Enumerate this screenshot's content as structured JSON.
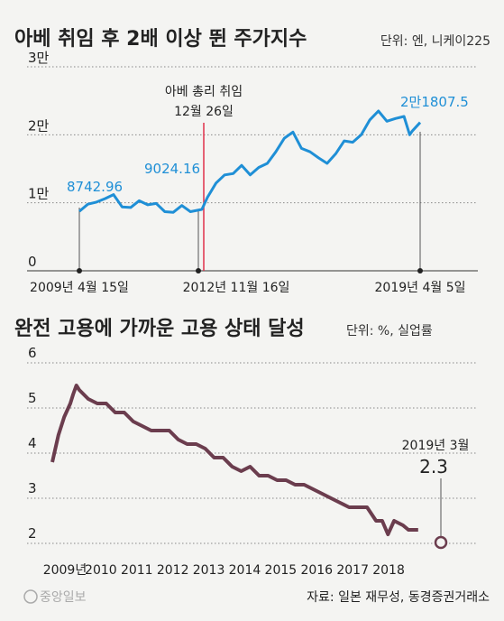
{
  "chart_data": [
    {
      "type": "line",
      "title": "아베 취임 후 2배 이상 뛴 주가지수",
      "unit_note": "단위: 엔, 니케이225",
      "y_ticks": [
        "3만",
        "2만",
        "1만",
        "0"
      ],
      "ylim": [
        0,
        30000
      ],
      "x_tick_labels": [
        "2009년 4월 15일",
        "2012년 11월 16일",
        "2019년 4월 5일"
      ],
      "event_annotation": {
        "line1": "아베 총리 취임",
        "line2": "12월 26일",
        "date": "2012-12-26"
      },
      "series": [
        {
          "color": "#1f8fd6",
          "x": [
            "2009-04-15",
            "2009-07",
            "2009-10",
            "2010-01",
            "2010-04",
            "2010-07",
            "2010-10",
            "2011-01",
            "2011-04",
            "2011-07",
            "2011-10",
            "2012-01",
            "2012-04",
            "2012-07",
            "2012-11-16",
            "2013-01",
            "2013-04",
            "2013-07",
            "2013-10",
            "2014-01",
            "2014-04",
            "2014-07",
            "2014-10",
            "2015-01",
            "2015-04",
            "2015-07",
            "2015-10",
            "2016-01",
            "2016-04",
            "2016-07",
            "2016-10",
            "2017-01",
            "2017-04",
            "2017-07",
            "2017-10",
            "2018-01",
            "2018-04",
            "2018-07",
            "2018-10",
            "2018-12",
            "2019-01",
            "2019-04-05"
          ],
          "values": [
            8742.96,
            9800,
            10100,
            10600,
            11200,
            9400,
            9300,
            10300,
            9700,
            9900,
            8700,
            8600,
            9600,
            8700,
            9024.16,
            10800,
            12900,
            14100,
            14300,
            15500,
            14100,
            15200,
            15800,
            17500,
            19500,
            20400,
            18000,
            17500,
            16600,
            15800,
            17200,
            19100,
            18900,
            20000,
            22200,
            23500,
            22000,
            22400,
            22700,
            20000,
            20600,
            21807.5
          ]
        }
      ],
      "annotations": {
        "start": "8742.96",
        "mid": "9024.16",
        "end": "2만1807.5"
      }
    },
    {
      "type": "line",
      "title": "완전 고용에 가까운 고용 상태 달성",
      "unit_note": "단위: %, 실업률",
      "y_ticks": [
        "6",
        "5",
        "4",
        "3",
        "2"
      ],
      "ylim": [
        2,
        6
      ],
      "x_tick_labels": [
        "2009년",
        "2010",
        "2011",
        "2012",
        "2013",
        "2014",
        "2015",
        "2016",
        "2017",
        "2018"
      ],
      "series": [
        {
          "color": "#6b3d4e",
          "x": [
            2009.0,
            2009.17,
            2009.33,
            2009.5,
            2009.58,
            2009.67,
            2009.75,
            2010.0,
            2010.25,
            2010.5,
            2010.75,
            2011.0,
            2011.25,
            2011.5,
            2011.75,
            2012.0,
            2012.25,
            2012.5,
            2012.75,
            2013.0,
            2013.25,
            2013.5,
            2013.75,
            2014.0,
            2014.25,
            2014.5,
            2014.75,
            2015.0,
            2015.25,
            2015.5,
            2015.75,
            2016.0,
            2016.25,
            2016.5,
            2016.75,
            2017.0,
            2017.25,
            2017.5,
            2017.75,
            2018.0,
            2018.17,
            2018.33,
            2018.5,
            2018.75,
            2018.9,
            2019.17
          ],
          "values": [
            3.8,
            4.4,
            4.8,
            5.1,
            5.3,
            5.5,
            5.4,
            5.2,
            5.1,
            5.1,
            4.9,
            4.9,
            4.7,
            4.6,
            4.5,
            4.5,
            4.5,
            4.3,
            4.2,
            4.2,
            4.1,
            3.9,
            3.9,
            3.7,
            3.6,
            3.7,
            3.5,
            3.5,
            3.4,
            3.4,
            3.3,
            3.3,
            3.2,
            3.1,
            3.0,
            2.9,
            2.8,
            2.8,
            2.8,
            2.5,
            2.5,
            2.2,
            2.5,
            2.4,
            2.3,
            2.3
          ]
        }
      ],
      "end_annotation": {
        "label": "2019년 3월",
        "value": "2.3"
      }
    }
  ],
  "footer": {
    "brand": "중앙일보",
    "source": "자료: 일본 재무성, 동경증권거래소"
  }
}
